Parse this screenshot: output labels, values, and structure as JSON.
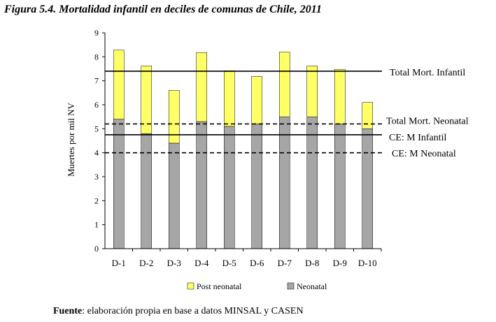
{
  "figure": {
    "title": "Figura 5.4. Mortalidad infantil en deciles de comunas de Chile, 2011",
    "source_bold": "Fuente",
    "source_rest": ": elaboración propia en base a datos MINSAL y CASEN"
  },
  "chart_data": {
    "type": "bar",
    "stacked": true,
    "categories": [
      "D-1",
      "D-2",
      "D-3",
      "D-4",
      "D-5",
      "D-6",
      "D-7",
      "D-8",
      "D-9",
      "D-10"
    ],
    "series": [
      {
        "name": "Neonatal",
        "color": "#a6a6a6",
        "values": [
          5.4,
          4.8,
          4.4,
          5.3,
          5.1,
          5.2,
          5.5,
          5.5,
          5.2,
          5.0
        ]
      },
      {
        "name": "Post neonatal",
        "color": "#ffff66",
        "values": [
          2.88,
          2.82,
          2.2,
          2.88,
          2.32,
          1.98,
          2.7,
          2.12,
          2.28,
          1.1
        ]
      }
    ],
    "ylabel": "Muertes por mil NV",
    "ylim": [
      0,
      9
    ],
    "yticks": [
      0,
      1,
      2,
      3,
      4,
      5,
      6,
      7,
      8,
      9
    ],
    "reference_lines": [
      {
        "label": "Total Mort. Infantil",
        "value": 7.4,
        "style": "solid"
      },
      {
        "label": "Total Mort. Neonatal",
        "value": 5.2,
        "style": "dashed"
      },
      {
        "label": "CE: M Infantil",
        "value": 4.75,
        "style": "solid"
      },
      {
        "label": "CE: M Neonatal",
        "value": 4.0,
        "style": "dashed"
      }
    ],
    "legend": [
      "Post neonatal",
      "Neonatal"
    ],
    "legend_position": "bottom",
    "grid": false
  }
}
